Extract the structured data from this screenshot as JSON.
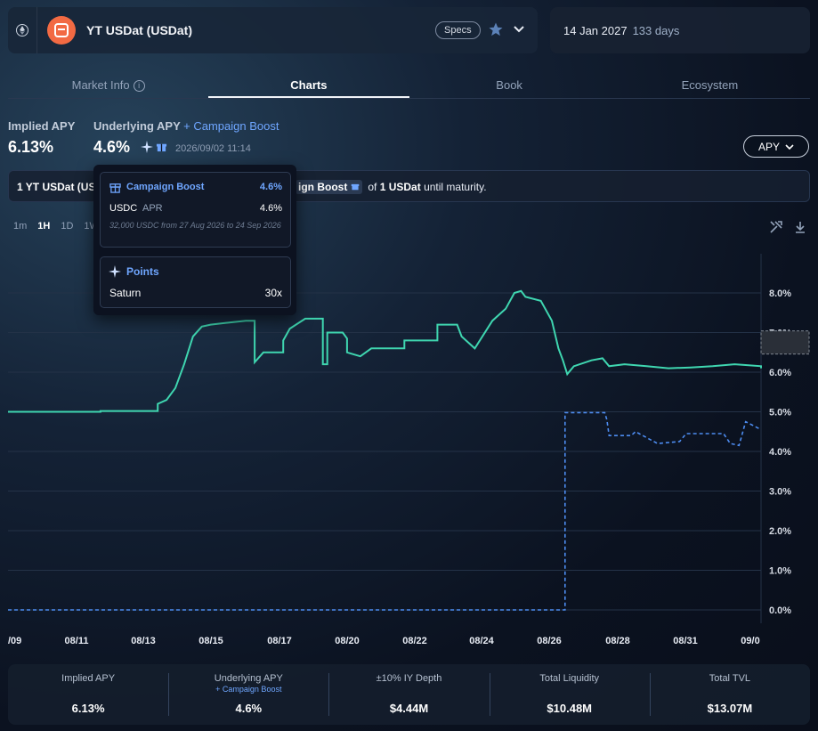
{
  "asset": {
    "name": "YT USDat (USDat)",
    "specs_label": "Specs",
    "chain_icon": "ethereum-icon",
    "logo_icon": "usdat-logo-icon"
  },
  "maturity": {
    "date": "14 Jan 2027",
    "days_left": "133 days"
  },
  "tabs": [
    {
      "label": "Market Info",
      "active": false
    },
    {
      "label": "Charts",
      "active": true
    },
    {
      "label": "Book",
      "active": false
    },
    {
      "label": "Ecosystem",
      "active": false
    }
  ],
  "summary": {
    "implied_label": "Implied APY",
    "implied_value": "6.13%",
    "underlying_label": "Underlying APY",
    "boost_label": "+ Campaign Boost",
    "underlying_value": "4.6%",
    "timestamp": "2026/09/02 11:14"
  },
  "apy_select": {
    "label": "APY"
  },
  "banner": {
    "left": "1 YT USDat (US",
    "boost_fragment": "ign Boost",
    "of": "of",
    "amount": "1 USDat",
    "tail": "until maturity."
  },
  "timeframes": [
    "1m",
    "1H",
    "1D",
    "1W"
  ],
  "active_timeframe": "1H",
  "tooltip": {
    "campaign_title": "Campaign Boost",
    "campaign_value": "4.6%",
    "token": "USDC",
    "apr_label": "APR",
    "token_value": "4.6%",
    "note": "32,000 USDC from 27 Aug 2026 to 24 Sep 2026",
    "points_title": "Points",
    "points_name": "Saturn",
    "points_value": "30x"
  },
  "chart_data": {
    "type": "line",
    "x_tick_labels": [
      "/09",
      "08/11",
      "08/13",
      "08/15",
      "08/17",
      "08/20",
      "08/22",
      "08/24",
      "08/26",
      "08/28",
      "08/31",
      "09/0"
    ],
    "y_tick_labels": [
      "0.0%",
      "1.0%",
      "2.0%",
      "3.0%",
      "4.0%",
      "5.0%",
      "6.0%",
      "7.0%",
      "8.0%"
    ],
    "ylim": [
      0,
      9
    ],
    "highlight_value": "7.0%",
    "series": [
      {
        "style": "solid",
        "color": "#3fd6b0",
        "points": [
          [
            0,
            5.0
          ],
          [
            4.2,
            5.0
          ],
          [
            4.2,
            5.02
          ],
          [
            6.8,
            5.02
          ],
          [
            6.8,
            5.2
          ],
          [
            7.2,
            5.3
          ],
          [
            7.6,
            5.6
          ],
          [
            8.0,
            6.2
          ],
          [
            8.4,
            6.9
          ],
          [
            8.8,
            7.15
          ],
          [
            9.2,
            7.2
          ],
          [
            10.0,
            7.25
          ],
          [
            10.8,
            7.3
          ],
          [
            11.2,
            7.3
          ],
          [
            11.2,
            6.25
          ],
          [
            11.6,
            6.5
          ],
          [
            12.5,
            6.5
          ],
          [
            12.5,
            6.8
          ],
          [
            12.8,
            7.1
          ],
          [
            13.5,
            7.35
          ],
          [
            14.3,
            7.35
          ],
          [
            14.3,
            6.2
          ],
          [
            14.5,
            6.2
          ],
          [
            14.5,
            7.0
          ],
          [
            15.2,
            7.0
          ],
          [
            15.4,
            6.85
          ],
          [
            15.4,
            6.5
          ],
          [
            16.0,
            6.4
          ],
          [
            16.5,
            6.6
          ],
          [
            18.0,
            6.6
          ],
          [
            18.0,
            6.8
          ],
          [
            19.5,
            6.8
          ],
          [
            19.5,
            7.2
          ],
          [
            20.4,
            7.2
          ],
          [
            20.6,
            6.9
          ],
          [
            21.2,
            6.6
          ],
          [
            22.0,
            7.3
          ],
          [
            22.6,
            7.6
          ],
          [
            23.0,
            8.0
          ],
          [
            23.3,
            8.05
          ],
          [
            23.5,
            7.9
          ],
          [
            24.2,
            7.8
          ],
          [
            24.7,
            7.3
          ],
          [
            25.0,
            6.6
          ],
          [
            25.2,
            6.3
          ],
          [
            25.4,
            5.95
          ],
          [
            25.7,
            6.15
          ],
          [
            26.5,
            6.3
          ],
          [
            27.0,
            6.35
          ],
          [
            27.3,
            6.15
          ],
          [
            28.0,
            6.2
          ],
          [
            29.0,
            6.15
          ],
          [
            30.0,
            6.1
          ],
          [
            31.0,
            6.12
          ],
          [
            32.0,
            6.15
          ],
          [
            33.0,
            6.2
          ],
          [
            33.5,
            6.18
          ],
          [
            34.2,
            6.15
          ],
          [
            34.2,
            6.1
          ]
        ]
      },
      {
        "style": "dashed",
        "color": "#4d8cf0",
        "points": [
          [
            0,
            0.0
          ],
          [
            25.3,
            0.0
          ],
          [
            25.3,
            4.98
          ],
          [
            27.1,
            4.98
          ],
          [
            27.2,
            4.8
          ],
          [
            27.3,
            4.4
          ],
          [
            28.3,
            4.4
          ],
          [
            28.5,
            4.5
          ],
          [
            29.5,
            4.2
          ],
          [
            30.5,
            4.25
          ],
          [
            30.8,
            4.45
          ],
          [
            32.5,
            4.45
          ],
          [
            32.8,
            4.2
          ],
          [
            33.2,
            4.15
          ],
          [
            33.5,
            4.75
          ],
          [
            34.2,
            4.55
          ]
        ]
      }
    ]
  },
  "stats": [
    {
      "label": "Implied APY",
      "sub": "",
      "value": "6.13%"
    },
    {
      "label": "Underlying APY",
      "sub": "+ Campaign Boost",
      "value": "4.6%"
    },
    {
      "label": "±10% IY Depth",
      "sub": "",
      "value": "$4.44M"
    },
    {
      "label": "Total Liquidity",
      "sub": "",
      "value": "$10.48M"
    },
    {
      "label": "Total TVL",
      "sub": "",
      "value": "$13.07M"
    }
  ]
}
